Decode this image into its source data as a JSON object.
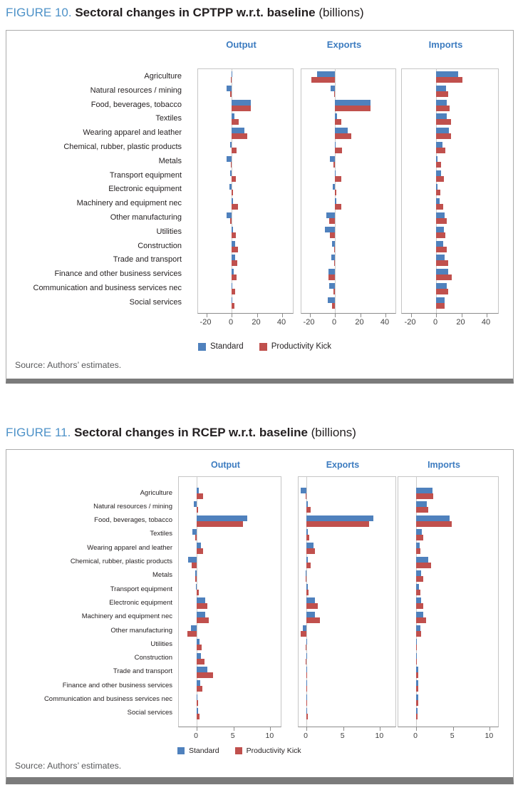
{
  "chart_data": [
    {
      "type": "bar",
      "orientation": "horizontal",
      "label": "FIGURE 10.",
      "title": "Sectoral changes in CPTPP w.r.t. baseline",
      "units": "(billions)",
      "source": "Source: Authors’ estimates.",
      "legend": [
        {
          "label": "Standard",
          "color": "#4F81BD"
        },
        {
          "label": "Productivity Kick",
          "color": "#C0504D"
        }
      ],
      "categories": [
        "Agriculture",
        "Natural resources / mining",
        "Food, beverages, tobacco",
        "Textiles",
        "Wearing apparel and leather",
        "Chemical, rubber, plastic products",
        "Metals",
        "Transport equipment",
        "Electronic equipment",
        "Machinery and equipment nec",
        "Other manufacturing",
        "Utilities",
        "Construction",
        "Trade and transport",
        "Finance and other business services",
        "Communication and business services nec",
        "Social services"
      ],
      "panels": [
        {
          "title": "Output",
          "xticks": [
            -20,
            0,
            20,
            40
          ],
          "xlim": [
            -26.5,
            49.5
          ],
          "series": [
            {
              "name": "Standard",
              "values": [
                0.8,
                -3.7,
                15.0,
                2.5,
                9.9,
                -0.9,
                -3.9,
                -1.4,
                -1.8,
                1.2,
                -3.9,
                1.1,
                3.0,
                2.8,
                1.6,
                0.7,
                0.7
              ]
            },
            {
              "name": "Productivity Kick",
              "values": [
                -0.5,
                -0.9,
                15.3,
                5.8,
                12.6,
                4.1,
                -0.5,
                3.5,
                1.1,
                5.1,
                -1.2,
                3.5,
                5.3,
                4.4,
                3.9,
                2.7,
                2.3
              ]
            }
          ]
        },
        {
          "title": "Exports",
          "xticks": [
            -20,
            0,
            20,
            40
          ],
          "xlim": [
            -26.5,
            49.5
          ],
          "series": [
            {
              "name": "Standard",
              "values": [
                -13.9,
                -3.5,
                28.0,
                1.8,
                10.2,
                0.7,
                -4.0,
                0.5,
                -1.6,
                1.4,
                -7.0,
                -8.1,
                -2.3,
                -2.8,
                -5.3,
                -4.6,
                -5.8
              ]
            },
            {
              "name": "Productivity Kick",
              "values": [
                -18.4,
                -0.7,
                28.4,
                5.0,
                12.8,
                5.4,
                -1.1,
                5.3,
                1.2,
                5.3,
                -4.6,
                -4.0,
                -0.7,
                -0.7,
                -4.9,
                -1.4,
                -2.1
              ]
            }
          ]
        },
        {
          "title": "Imports",
          "xticks": [
            -20,
            0,
            20,
            40
          ],
          "xlim": [
            -27.5,
            49.5
          ],
          "series": [
            {
              "name": "Standard",
              "values": [
                17.6,
                7.8,
                8.3,
                8.7,
                10.2,
                5.2,
                1.3,
                3.7,
                1.1,
                2.6,
                7.0,
                6.1,
                5.7,
                7.0,
                9.3,
                8.5,
                7.0
              ]
            },
            {
              "name": "Productivity Kick",
              "values": [
                20.9,
                9.3,
                10.6,
                11.7,
                11.7,
                7.4,
                4.1,
                6.3,
                3.5,
                5.7,
                8.7,
                7.2,
                8.3,
                9.4,
                12.2,
                9.3,
                7.0
              ]
            }
          ]
        }
      ]
    },
    {
      "type": "bar",
      "orientation": "horizontal",
      "label": "FIGURE 11.",
      "title": "Sectoral changes in RCEP w.r.t. baseline",
      "units": "(billions)",
      "source": "Source: Authors’ estimates.",
      "legend": [
        {
          "label": "Standard",
          "color": "#4F81BD"
        },
        {
          "label": "Productivity Kick",
          "color": "#C0504D"
        }
      ],
      "categories": [
        "Agriculture",
        "Natural resources / mining",
        "Food, beverages, tobacco",
        "Textiles",
        "Wearing apparel and leather",
        "Chemical, rubber, plastic products",
        "Metals",
        "Transport equipment",
        "Electronic equipment",
        "Machinery and equipment nec",
        "Other manufacturing",
        "Utilities",
        "Construction",
        "Trade and transport",
        "Finance and other business services",
        "Communication and business services nec",
        "Social services"
      ],
      "panels": [
        {
          "title": "Output",
          "xticks": [
            0,
            5,
            10
          ],
          "xlim": [
            -2.4,
            11.6
          ],
          "series": [
            {
              "name": "Standard",
              "values": [
                0.3,
                -0.35,
                6.9,
                -0.6,
                0.6,
                -1.2,
                -0.2,
                -0.1,
                1.15,
                1.2,
                -0.8,
                0.35,
                0.6,
                1.45,
                0.45,
                0.1,
                0.2
              ]
            },
            {
              "name": "Productivity Kick",
              "values": [
                0.85,
                0.2,
                6.3,
                -0.2,
                0.85,
                -0.7,
                -0.15,
                0.25,
                1.45,
                1.65,
                -1.25,
                0.7,
                1.05,
                2.2,
                0.8,
                0.2,
                0.4
              ]
            }
          ]
        },
        {
          "title": "Exports",
          "xticks": [
            0,
            5,
            10
          ],
          "xlim": [
            -1.1,
            12.3
          ],
          "series": [
            {
              "name": "Standard",
              "values": [
                -0.8,
                0.15,
                9.1,
                0.2,
                0.95,
                0.2,
                -0.1,
                0.15,
                1.15,
                1.2,
                -0.5,
                0.05,
                0.0,
                0.1,
                0.1,
                0.1,
                0.1
              ]
            },
            {
              "name": "Productivity Kick",
              "values": [
                -0.1,
                0.55,
                8.5,
                0.4,
                1.15,
                0.6,
                -0.05,
                0.3,
                1.5,
                1.8,
                -0.75,
                -0.05,
                -0.05,
                0.05,
                0.05,
                0.1,
                0.15
              ]
            }
          ]
        },
        {
          "title": "Imports",
          "xticks": [
            0,
            5,
            10
          ],
          "xlim": [
            -2.4,
            11.3
          ],
          "series": [
            {
              "name": "Standard",
              "values": [
                2.25,
                1.45,
                4.55,
                0.8,
                0.45,
                1.6,
                0.65,
                0.4,
                0.7,
                0.95,
                0.6,
                0.1,
                0.1,
                0.25,
                0.25,
                0.3,
                0.15
              ]
            },
            {
              "name": "Productivity Kick",
              "values": [
                2.35,
                1.6,
                4.85,
                0.95,
                0.6,
                2.0,
                1.0,
                0.6,
                0.95,
                1.4,
                0.7,
                0.1,
                0.1,
                0.3,
                0.3,
                0.3,
                0.2
              ]
            }
          ]
        }
      ]
    }
  ]
}
